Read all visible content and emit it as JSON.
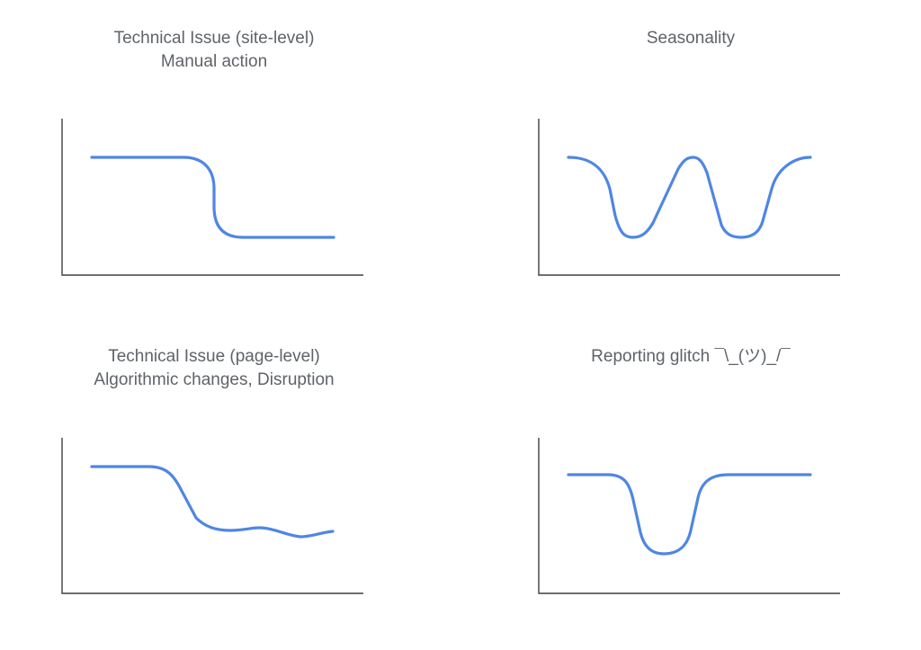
{
  "panels": [
    {
      "id": "site-level",
      "title_lines": [
        "Technical Issue (site-level)",
        "Manual action"
      ],
      "pattern": "sharp-drop"
    },
    {
      "id": "seasonality",
      "title_lines": [
        "Seasonality"
      ],
      "pattern": "repeating-dips"
    },
    {
      "id": "page-level",
      "title_lines": [
        "Technical Issue (page-level)",
        "Algorithmic changes, Disruption"
      ],
      "pattern": "gradual-decline"
    },
    {
      "id": "reporting-glitch",
      "title_lines": [
        "Reporting glitch ¯\\_(ツ)_/¯"
      ],
      "pattern": "temporary-dip"
    }
  ],
  "colors": {
    "line": "#4f86e4",
    "axis": "#3c4043",
    "title": "#5f6368",
    "background": "#ffffff"
  }
}
